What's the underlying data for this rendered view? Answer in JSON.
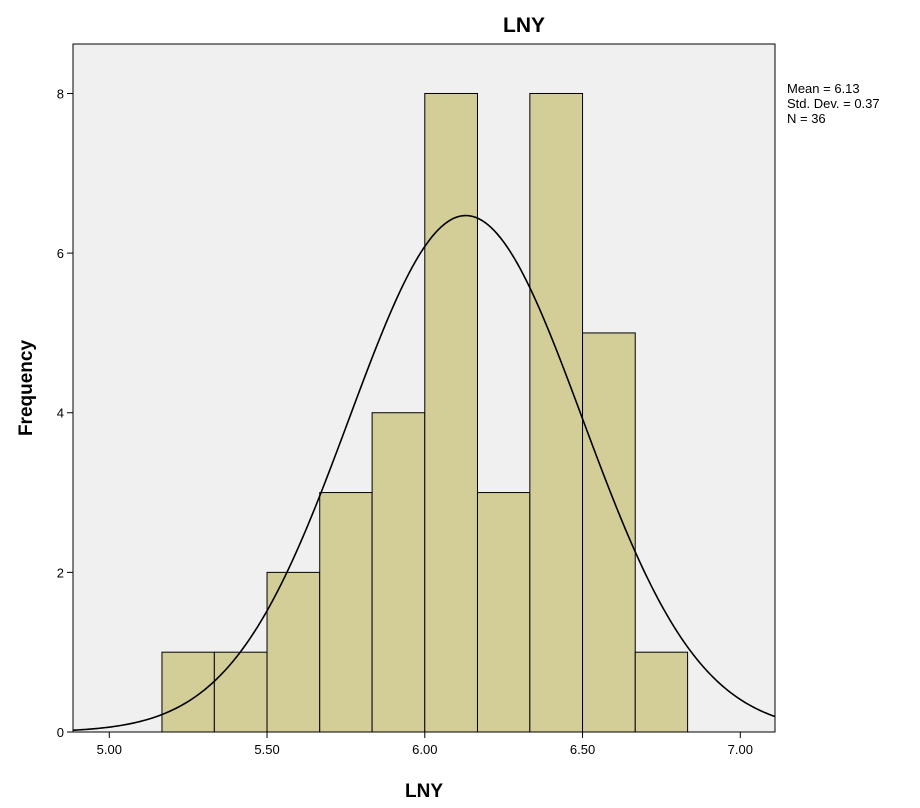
{
  "chart_data": {
    "type": "histogram",
    "title": "LNY",
    "xlabel": "LNY",
    "ylabel": "Frequency",
    "xlim": [
      4.885,
      7.11
    ],
    "ylim": [
      0,
      8.62
    ],
    "x_ticks": [
      5.0,
      5.5,
      6.0,
      6.5,
      7.0
    ],
    "x_tick_labels": [
      "5.00",
      "5.50",
      "6.00",
      "6.50",
      "7.00"
    ],
    "y_ticks": [
      0,
      2,
      4,
      6,
      8
    ],
    "y_tick_labels": [
      "0",
      "2",
      "4",
      "6",
      "8"
    ],
    "bins": [
      {
        "start": 5.167,
        "end": 5.333,
        "count": 1
      },
      {
        "start": 5.333,
        "end": 5.5,
        "count": 1
      },
      {
        "start": 5.5,
        "end": 5.667,
        "count": 2
      },
      {
        "start": 5.667,
        "end": 5.833,
        "count": 3
      },
      {
        "start": 5.833,
        "end": 6.0,
        "count": 4
      },
      {
        "start": 6.0,
        "end": 6.167,
        "count": 8
      },
      {
        "start": 6.167,
        "end": 6.333,
        "count": 3
      },
      {
        "start": 6.333,
        "end": 6.5,
        "count": 8
      },
      {
        "start": 6.5,
        "end": 6.667,
        "count": 5
      },
      {
        "start": 6.667,
        "end": 6.833,
        "count": 1
      }
    ],
    "normal_curve": {
      "mean": 6.13,
      "sd": 0.37,
      "n": 36,
      "bin_width": 0.1667
    },
    "stats_labels": [
      "Mean = 6.13",
      "Std. Dev. = 0.37",
      "N = 36"
    ],
    "grid": false,
    "colors": {
      "bar_fill": "#d3ce98",
      "bar_stroke": "#000000",
      "plot_bg": "#f0f0f0",
      "curve": "#000000"
    }
  }
}
